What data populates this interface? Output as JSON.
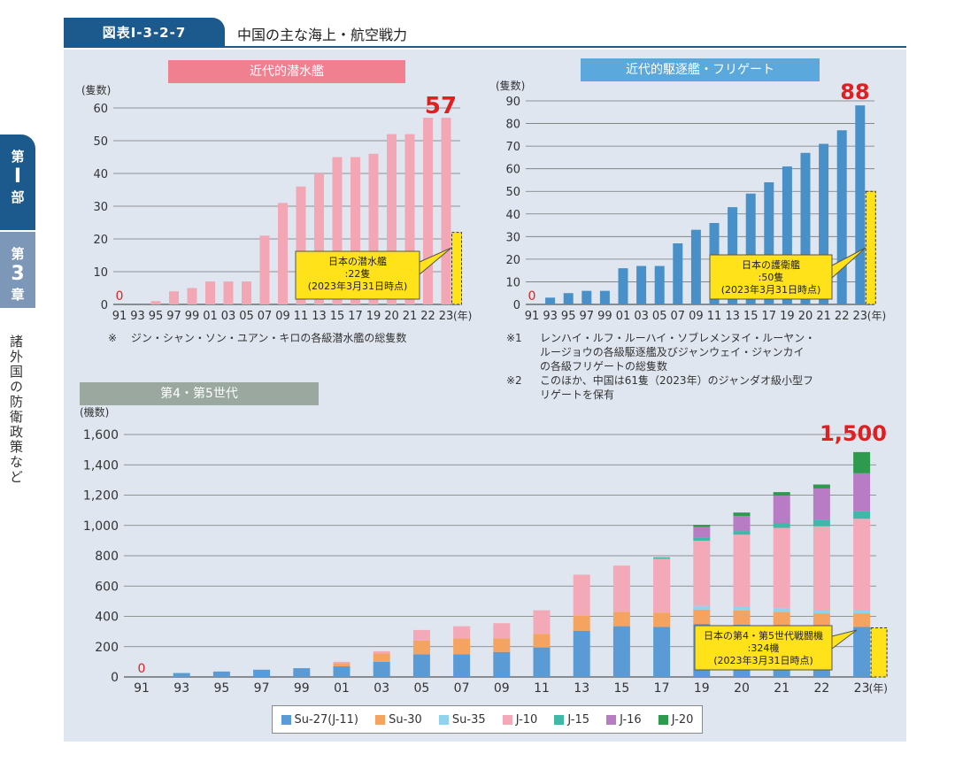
{
  "header": {
    "figure_label": "図表Ⅰ-3-2-7",
    "title": "中国の主な海上・航空戦力"
  },
  "side": {
    "tab1": [
      "第",
      "Ⅰ",
      "部"
    ],
    "tab2": [
      "第",
      "3",
      "章"
    ],
    "chapter_title": "諸外国の防衛政策など"
  },
  "colors": {
    "submarine_bar": "#f3a6b4",
    "destroyer_bar": "#4a90c8",
    "japan_bar": "#ffe21a",
    "highlight": "#e02020",
    "callout": "#ffe21a",
    "su27": "#5b9bd5",
    "su30": "#f4a460",
    "su35": "#8fd3ef",
    "j10": "#f4a9b8",
    "j15": "#3fb8a8",
    "j16": "#b87cc4",
    "j20": "#2e9a4e"
  },
  "notes": {
    "submarine": "※　ジン・シャン・ソン・ユアン・キロの各級潜水艦の総隻数",
    "destroyer1": "※1　レンハイ・ルフ・ルーハイ・ソブレメンヌイ・ルーヤン・ルージョウの各級駆逐艦及びジャンウェイ・ジャンカイの各級フリゲートの総隻数",
    "destroyer1_a": "レンハイ・ルフ・ルーハイ・ソブレメンヌイ・ルーヤン・",
    "destroyer1_b": "ルージョウの各級駆逐艦及びジャンウェイ・ジャンカイ",
    "destroyer1_c": "の各級フリゲートの総隻数",
    "destroyer1_mark": "※1",
    "destroyer2_mark": "※2",
    "destroyer2_a": "このほか、中国は61隻（2023年）のジャンダオ級小型フ",
    "destroyer2_b": "リゲートを保有",
    "submarine_mark": "※",
    "submarine_text": "ジン・シャン・ソン・ユアン・キロの各級潜水艦の総隻数"
  },
  "chart_data": [
    {
      "type": "bar",
      "title": "近代的潜水艦",
      "ylabel": "(隻数)",
      "xlabel": "(年)",
      "ylim": [
        0,
        60
      ],
      "yticks": [
        0,
        10,
        20,
        30,
        40,
        50,
        60
      ],
      "grid": true,
      "categories": [
        "91",
        "93",
        "95",
        "97",
        "99",
        "01",
        "03",
        "05",
        "07",
        "09",
        "11",
        "13",
        "15",
        "17",
        "19",
        "20",
        "21",
        "22",
        "23"
      ],
      "values": [
        0,
        0,
        1,
        4,
        5,
        7,
        7,
        7,
        21,
        31,
        36,
        40,
        45,
        45,
        46,
        52,
        52,
        57,
        57
      ],
      "zero_label": "0",
      "highlight_value": "57",
      "japan": {
        "value": 22,
        "label_lines": [
          "日本の潜水艦",
          ":22隻",
          "(2023年3月31日時点)"
        ]
      }
    },
    {
      "type": "bar",
      "title": "近代的駆逐艦・フリゲート",
      "ylabel": "(隻数)",
      "xlabel": "(年)",
      "ylim": [
        0,
        90
      ],
      "yticks": [
        0,
        10,
        20,
        30,
        40,
        50,
        60,
        70,
        80,
        90
      ],
      "grid": true,
      "categories": [
        "91",
        "93",
        "95",
        "97",
        "99",
        "01",
        "03",
        "05",
        "07",
        "09",
        "11",
        "13",
        "15",
        "17",
        "19",
        "20",
        "21",
        "22",
        "23"
      ],
      "values": [
        0,
        3,
        5,
        6,
        6,
        16,
        17,
        17,
        27,
        33,
        36,
        43,
        49,
        54,
        61,
        67,
        71,
        77,
        88
      ],
      "zero_label": "0",
      "highlight_value": "88",
      "japan": {
        "value": 50,
        "label_lines": [
          "日本の護衛艦",
          ":50隻",
          "(2023年3月31日時点)"
        ]
      }
    },
    {
      "type": "bar",
      "stacked": true,
      "title": "第4・第5世代",
      "ylabel": "(機数)",
      "xlabel": "(年)",
      "ylim": [
        0,
        1600
      ],
      "yticks": [
        0,
        200,
        400,
        600,
        800,
        1000,
        1200,
        1400,
        1600
      ],
      "ytick_labels": [
        "0",
        "200",
        "400",
        "600",
        "800",
        "1,000",
        "1,200",
        "1,400",
        "1,600"
      ],
      "grid": true,
      "categories": [
        "91",
        "93",
        "95",
        "97",
        "99",
        "01",
        "03",
        "05",
        "07",
        "09",
        "11",
        "13",
        "15",
        "17",
        "19",
        "20",
        "21",
        "22",
        "23"
      ],
      "series": [
        {
          "name": "Su-27(J-11)",
          "values": [
            0,
            26,
            36,
            48,
            58,
            70,
            100,
            150,
            150,
            165,
            195,
            305,
            335,
            330,
            350,
            345,
            330,
            330,
            330
          ]
        },
        {
          "name": "Su-30",
          "values": [
            0,
            0,
            0,
            0,
            0,
            20,
            55,
            90,
            105,
            90,
            90,
            100,
            95,
            95,
            95,
            95,
            100,
            90,
            90
          ]
        },
        {
          "name": "Su-35",
          "values": [
            0,
            0,
            0,
            0,
            0,
            0,
            0,
            0,
            0,
            0,
            0,
            0,
            0,
            0,
            24,
            24,
            24,
            24,
            24
          ]
        },
        {
          "name": "J-10",
          "values": [
            0,
            0,
            0,
            0,
            0,
            10,
            15,
            70,
            80,
            100,
            155,
            270,
            305,
            355,
            430,
            475,
            530,
            550,
            600
          ]
        },
        {
          "name": "J-15",
          "values": [
            0,
            0,
            0,
            0,
            0,
            0,
            0,
            0,
            0,
            0,
            0,
            0,
            0,
            10,
            20,
            24,
            32,
            40,
            50
          ]
        },
        {
          "name": "J-16",
          "values": [
            0,
            0,
            0,
            0,
            0,
            0,
            0,
            0,
            0,
            0,
            0,
            0,
            0,
            0,
            70,
            100,
            180,
            210,
            250
          ]
        },
        {
          "name": "J-20",
          "values": [
            0,
            0,
            0,
            0,
            0,
            0,
            0,
            0,
            0,
            0,
            0,
            0,
            0,
            0,
            15,
            22,
            24,
            26,
            140
          ]
        }
      ],
      "zero_label": "0",
      "highlight_value": "1,500",
      "japan": {
        "value": 324,
        "label_lines": [
          "日本の第4・第5世代戦闘機",
          ":324機",
          "(2023年3月31日時点)"
        ]
      }
    }
  ]
}
